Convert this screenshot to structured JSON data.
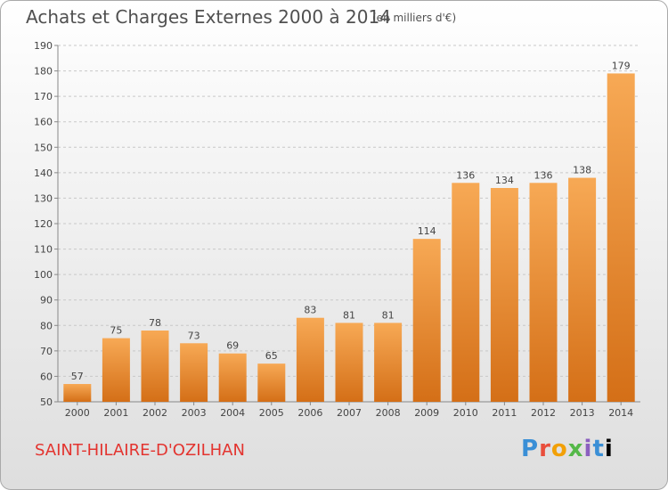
{
  "header": {
    "title": "Achats et Charges Externes 2000 à 2014",
    "unit": "(en milliers d'€)"
  },
  "footer": {
    "city": "SAINT-HILAIRE-D'OZILHAN",
    "logo": "Proxiti"
  },
  "colors": {
    "bar_light": "#f7a955",
    "bar_dark": "#d46f17",
    "city": "#e3342f"
  },
  "chart_data": {
    "type": "bar",
    "categories": [
      "2000",
      "2001",
      "2002",
      "2003",
      "2004",
      "2005",
      "2006",
      "2007",
      "2008",
      "2009",
      "2010",
      "2011",
      "2012",
      "2013",
      "2014"
    ],
    "values": [
      57,
      75,
      78,
      73,
      69,
      65,
      83,
      81,
      81,
      114,
      136,
      134,
      136,
      138,
      179
    ],
    "title": "Achats et Charges Externes 2000 à 2014",
    "ylim": [
      50,
      190
    ],
    "yticks": [
      50,
      60,
      70,
      80,
      90,
      100,
      110,
      120,
      130,
      140,
      150,
      160,
      170,
      180,
      190
    ],
    "grid": true,
    "data_labels": true
  }
}
